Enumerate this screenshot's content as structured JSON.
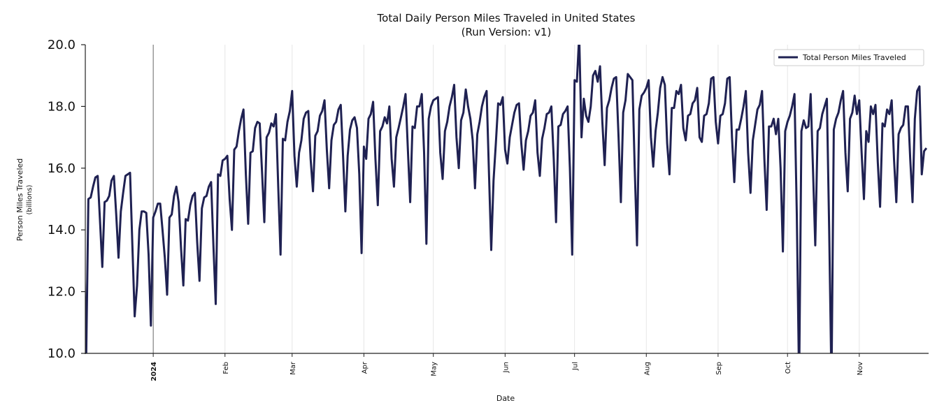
{
  "chart_data": {
    "type": "line",
    "title": "Total Daily Person Miles Traveled in United States",
    "subtitle": "(Run Version: v1)",
    "xlabel": "Date",
    "ylabel": "Person Miles Traveled",
    "ylabel_unit": "(billions)",
    "xlim": [
      "2023-12-02",
      "2024-11-30"
    ],
    "ylim": [
      10.0,
      20.0
    ],
    "yticks": [
      10.0,
      12.0,
      14.0,
      16.0,
      18.0,
      20.0
    ],
    "ytick_labels": [
      "10.0",
      "12.0",
      "14.0",
      "16.0",
      "18.0",
      "20.0"
    ],
    "xticks": [
      {
        "date": "2024-01-01",
        "label": "2024",
        "bold": true
      },
      {
        "date": "2024-02-01",
        "label": "Feb"
      },
      {
        "date": "2024-03-01",
        "label": "Mar"
      },
      {
        "date": "2024-04-01",
        "label": "Apr"
      },
      {
        "date": "2024-05-01",
        "label": "May"
      },
      {
        "date": "2024-06-01",
        "label": "Jun"
      },
      {
        "date": "2024-07-01",
        "label": "Jul"
      },
      {
        "date": "2024-08-01",
        "label": "Aug"
      },
      {
        "date": "2024-09-01",
        "label": "Sep"
      },
      {
        "date": "2024-10-01",
        "label": "Oct"
      },
      {
        "date": "2024-11-01",
        "label": "Nov"
      }
    ],
    "grid": "vertical at month ticks",
    "legend_placement": "top-right",
    "color": "#1f2152",
    "series": [
      {
        "name": "Total Person Miles Traveled",
        "weeks": [
          {
            "start": "2023-12-02",
            "y": [
              14.0,
              9.6,
              15.0,
              15.05,
              15.4,
              15.7,
              15.75,
              14.3
            ]
          },
          {
            "start": "2023-12-10",
            "y": [
              12.8,
              14.9,
              14.95,
              15.1,
              15.6,
              15.75,
              14.5
            ]
          },
          {
            "start": "2023-12-17",
            "y": [
              13.1,
              14.6,
              15.2,
              15.75,
              15.8,
              15.85,
              13.5
            ]
          },
          {
            "start": "2023-12-24",
            "y": [
              11.2,
              12.2,
              14.0,
              14.6,
              14.6,
              14.55,
              13.2
            ]
          },
          {
            "start": "2023-12-31",
            "y": [
              10.9,
              14.4,
              14.6,
              14.85,
              14.85,
              14.0,
              13.1
            ]
          },
          {
            "start": "2024-01-07",
            "y": [
              11.9,
              14.4,
              14.5,
              15.1,
              15.4,
              14.9,
              13.4
            ]
          },
          {
            "start": "2024-01-14",
            "y": [
              12.2,
              14.35,
              14.3,
              14.8,
              15.1,
              15.2,
              13.6
            ]
          },
          {
            "start": "2024-01-21",
            "y": [
              12.35,
              14.7,
              15.05,
              15.1,
              15.4,
              15.55,
              13.5
            ]
          },
          {
            "start": "2024-01-28",
            "y": [
              11.6,
              15.8,
              15.75,
              16.25,
              16.3,
              16.4,
              15.0
            ]
          },
          {
            "start": "2024-02-04",
            "y": [
              14.0,
              16.6,
              16.7,
              17.2,
              17.6,
              17.9,
              15.8
            ]
          },
          {
            "start": "2024-02-11",
            "y": [
              14.2,
              16.5,
              16.55,
              17.3,
              17.5,
              17.45,
              15.9
            ]
          },
          {
            "start": "2024-02-18",
            "y": [
              14.25,
              17.0,
              17.15,
              17.45,
              17.35,
              17.75,
              15.4
            ]
          },
          {
            "start": "2024-02-25",
            "y": [
              13.2,
              16.95,
              16.9,
              17.5,
              17.85,
              18.5,
              16.4
            ]
          },
          {
            "start": "2024-03-03",
            "y": [
              15.4,
              16.5,
              16.9,
              17.6,
              17.8,
              17.85,
              16.3
            ]
          },
          {
            "start": "2024-03-10",
            "y": [
              15.25,
              17.05,
              17.2,
              17.7,
              17.85,
              18.2,
              16.6
            ]
          },
          {
            "start": "2024-03-17",
            "y": [
              15.35,
              16.9,
              17.4,
              17.5,
              17.9,
              18.05,
              16.4
            ]
          },
          {
            "start": "2024-03-24",
            "y": [
              14.6,
              16.4,
              17.25,
              17.55,
              17.65,
              17.3,
              15.8
            ]
          },
          {
            "start": "2024-03-31",
            "y": [
              13.25,
              16.7,
              16.3,
              17.6,
              17.75,
              18.15,
              16.3
            ]
          },
          {
            "start": "2024-04-07",
            "y": [
              14.8,
              17.2,
              17.35,
              17.65,
              17.45,
              18.0,
              16.3
            ]
          },
          {
            "start": "2024-04-14",
            "y": [
              15.4,
              17.0,
              17.3,
              17.65,
              18.0,
              18.4,
              16.6
            ]
          },
          {
            "start": "2024-04-21",
            "y": [
              14.9,
              17.35,
              17.3,
              18.0,
              18.0,
              18.4,
              16.5
            ]
          },
          {
            "start": "2024-04-28",
            "y": [
              13.55,
              17.6,
              18.0,
              18.2,
              18.25,
              18.3,
              16.5
            ]
          },
          {
            "start": "2024-05-05",
            "y": [
              15.65,
              17.2,
              17.5,
              18.0,
              18.3,
              18.7,
              17.0
            ]
          },
          {
            "start": "2024-05-12",
            "y": [
              16.0,
              17.55,
              17.8,
              18.55,
              18.0,
              17.6,
              16.9
            ]
          },
          {
            "start": "2024-05-19",
            "y": [
              15.35,
              17.1,
              17.5,
              18.0,
              18.3,
              18.5,
              15.9
            ]
          },
          {
            "start": "2024-05-26",
            "y": [
              13.35,
              15.6,
              16.8,
              18.1,
              18.05,
              18.3,
              16.6
            ]
          },
          {
            "start": "2024-06-02",
            "y": [
              16.15,
              17.0,
              17.4,
              17.8,
              18.05,
              18.1,
              16.8
            ]
          },
          {
            "start": "2024-06-09",
            "y": [
              15.95,
              16.9,
              17.2,
              17.7,
              17.8,
              18.2,
              16.5
            ]
          },
          {
            "start": "2024-06-16",
            "y": [
              15.75,
              16.95,
              17.3,
              17.75,
              17.8,
              18.0,
              16.3
            ]
          },
          {
            "start": "2024-06-23",
            "y": [
              14.25,
              17.35,
              17.4,
              17.75,
              17.85,
              18.0,
              16.0
            ]
          },
          {
            "start": "2024-06-30",
            "y": [
              13.2,
              18.85,
              18.8,
              20.3,
              17.0,
              18.25,
              17.7
            ]
          },
          {
            "start": "2024-07-07",
            "y": [
              17.5,
              18.0,
              19.0,
              19.15,
              18.8,
              19.3,
              17.5
            ]
          },
          {
            "start": "2024-07-14",
            "y": [
              16.1,
              17.95,
              18.2,
              18.6,
              18.9,
              18.95,
              17.0
            ]
          },
          {
            "start": "2024-07-21",
            "y": [
              14.9,
              17.8,
              18.2,
              19.05,
              18.95,
              18.85,
              16.0
            ]
          },
          {
            "start": "2024-07-28",
            "y": [
              13.5,
              17.9,
              18.35,
              18.45,
              18.6,
              18.85,
              17.0
            ]
          },
          {
            "start": "2024-08-04",
            "y": [
              16.05,
              17.2,
              17.8,
              18.6,
              18.95,
              18.7,
              16.8
            ]
          },
          {
            "start": "2024-08-11",
            "y": [
              15.8,
              17.95,
              17.95,
              18.5,
              18.4,
              18.7,
              17.3
            ]
          },
          {
            "start": "2024-08-18",
            "y": [
              16.9,
              17.7,
              17.75,
              18.1,
              18.2,
              18.6,
              17.0
            ]
          },
          {
            "start": "2024-08-25",
            "y": [
              16.85,
              17.7,
              17.75,
              18.1,
              18.9,
              18.95,
              17.5
            ]
          },
          {
            "start": "2024-09-01",
            "y": [
              16.8,
              17.7,
              17.75,
              18.1,
              18.9,
              18.95,
              17.0
            ]
          },
          {
            "start": "2024-09-08",
            "y": [
              15.55,
              17.25,
              17.25,
              17.6,
              18.0,
              18.5,
              16.5
            ]
          },
          {
            "start": "2024-09-15",
            "y": [
              15.2,
              16.9,
              17.4,
              17.9,
              18.05,
              18.5,
              16.3
            ]
          },
          {
            "start": "2024-09-22",
            "y": [
              14.65,
              17.35,
              17.35,
              17.6,
              17.1,
              17.6,
              16.0
            ]
          },
          {
            "start": "2024-09-29",
            "y": [
              13.3,
              17.2,
              17.5,
              17.7,
              18.0,
              18.4,
              14.5
            ]
          },
          {
            "start": "2024-10-06",
            "y": [
              9.0,
              17.2,
              17.55,
              17.3,
              17.35,
              18.4,
              16.0
            ]
          },
          {
            "start": "2024-10-13",
            "y": [
              13.5,
              17.2,
              17.3,
              17.75,
              18.0,
              18.25,
              14.0
            ]
          },
          {
            "start": "2024-10-20",
            "y": [
              9.0,
              17.25,
              17.6,
              17.8,
              18.2,
              18.5,
              16.5
            ]
          },
          {
            "start": "2024-10-27",
            "y": [
              15.25,
              17.6,
              17.8,
              18.35,
              17.75,
              18.2,
              16.5
            ]
          },
          {
            "start": "2024-11-03",
            "y": [
              15.0,
              17.2,
              16.85,
              18.0,
              17.75,
              18.05,
              16.2
            ]
          },
          {
            "start": "2024-11-10",
            "y": [
              14.75,
              17.45,
              17.35,
              17.9,
              17.75,
              18.2,
              16.3
            ]
          },
          {
            "start": "2024-11-17",
            "y": [
              14.9,
              17.1,
              17.3,
              17.4,
              18.0,
              18.0,
              16.3
            ]
          },
          {
            "start": "2024-11-24",
            "y": [
              14.9,
              17.6,
              18.5,
              18.65,
              15.8,
              16.55,
              16.65
            ]
          }
        ]
      }
    ]
  }
}
